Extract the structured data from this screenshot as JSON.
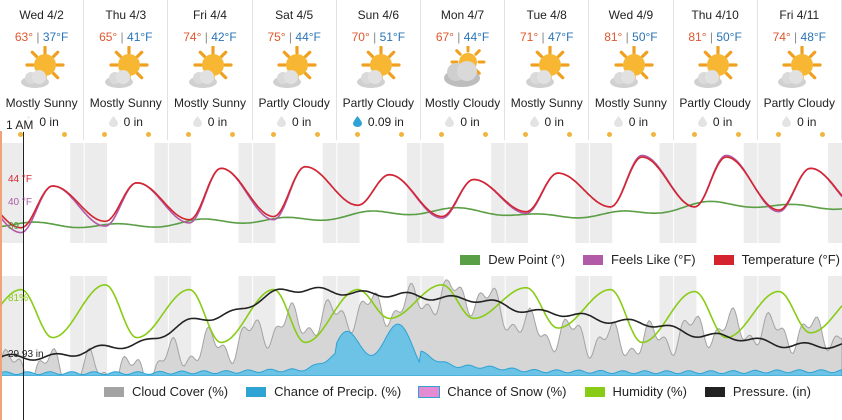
{
  "days": [
    {
      "name": "Wed 4/2",
      "hi": "63°",
      "lo": "37°F",
      "icon": "sun-cloud-icon",
      "condition": "Mostly Sunny",
      "precip": "0 in",
      "precip_type": "none"
    },
    {
      "name": "Thu 4/3",
      "hi": "65°",
      "lo": "41°F",
      "icon": "sun-cloud-icon",
      "condition": "Mostly Sunny",
      "precip": "0 in",
      "precip_type": "none"
    },
    {
      "name": "Fri 4/4",
      "hi": "74°",
      "lo": "42°F",
      "icon": "sun-cloud-icon",
      "condition": "Mostly Sunny",
      "precip": "0 in",
      "precip_type": "none"
    },
    {
      "name": "Sat 4/5",
      "hi": "75°",
      "lo": "44°F",
      "icon": "sun-cloud-icon",
      "condition": "Partly Cloudy",
      "precip": "0 in",
      "precip_type": "none"
    },
    {
      "name": "Sun 4/6",
      "hi": "70°",
      "lo": "51°F",
      "icon": "sun-cloud-icon",
      "condition": "Partly Cloudy",
      "precip": "0.09 in",
      "precip_type": "rain"
    },
    {
      "name": "Mon 4/7",
      "hi": "67°",
      "lo": "44°F",
      "icon": "cloud-sun-icon",
      "condition": "Mostly Cloudy",
      "precip": "0 in",
      "precip_type": "none"
    },
    {
      "name": "Tue 4/8",
      "hi": "71°",
      "lo": "47°F",
      "icon": "sun-cloud-icon",
      "condition": "Mostly Sunny",
      "precip": "0 in",
      "precip_type": "none"
    },
    {
      "name": "Wed 4/9",
      "hi": "81°",
      "lo": "50°F",
      "icon": "sun-cloud-icon",
      "condition": "Mostly Sunny",
      "precip": "0 in",
      "precip_type": "none"
    },
    {
      "name": "Thu 4/10",
      "hi": "81°",
      "lo": "50°F",
      "icon": "sun-cloud-icon",
      "condition": "Partly Cloudy",
      "precip": "0 in",
      "precip_type": "none"
    },
    {
      "name": "Fri 4/11",
      "hi": "74°",
      "lo": "48°F",
      "icon": "sun-cloud-icon",
      "condition": "Partly Cloudy",
      "precip": "0 in",
      "precip_type": "none"
    }
  ],
  "cursor": {
    "time": "1 AM",
    "temperature": "44 °F",
    "feels_like": "40 °F",
    "dew_point": "39",
    "humidity": "81%",
    "pressure": "29.93 in"
  },
  "legend_temp": [
    {
      "label": "Dew Point (°)",
      "color": "#5a9e45"
    },
    {
      "label": "Feels Like (°F)",
      "color": "#b15aa8"
    },
    {
      "label": "Temperature (°F)",
      "color": "#d4252f"
    }
  ],
  "legend_humid": [
    {
      "label": "Cloud Cover (%)",
      "color": "#a3a3a3"
    },
    {
      "label": "Chance of Precip. (%)",
      "color": "#2ea3d4"
    },
    {
      "label": "Chance of Snow (%)",
      "color": "#e48bd4"
    },
    {
      "label": "Humidity (%)",
      "color": "#88cc16"
    },
    {
      "label": "Pressure. (in)",
      "color": "#222222"
    }
  ],
  "colors": {
    "hi_temp": "#e0562c",
    "lo_temp": "#2a74b7",
    "night_band": "#ececec",
    "grid": "#dddddd"
  },
  "chart_data": [
    {
      "type": "line",
      "title": "",
      "xlabel": "",
      "ylabel": "",
      "x": [
        "Wed 4/2",
        "Thu 4/3",
        "Fri 4/4",
        "Sat 4/5",
        "Sun 4/6",
        "Mon 4/7",
        "Tue 4/8",
        "Wed 4/9",
        "Thu 4/10",
        "Fri 4/11"
      ],
      "series": [
        {
          "name": "Temperature (°F)",
          "values": [
            {
              "hi": 63,
              "lo": 37
            },
            {
              "hi": 65,
              "lo": 41
            },
            {
              "hi": 74,
              "lo": 42
            },
            {
              "hi": 75,
              "lo": 44
            },
            {
              "hi": 70,
              "lo": 51
            },
            {
              "hi": 67,
              "lo": 44
            },
            {
              "hi": 71,
              "lo": 47
            },
            {
              "hi": 81,
              "lo": 50
            },
            {
              "hi": 81,
              "lo": 50
            },
            {
              "hi": 74,
              "lo": 48
            }
          ]
        },
        {
          "name": "Feels Like (°F)",
          "values": [
            {
              "hi": 63,
              "lo": 34
            },
            {
              "hi": 65,
              "lo": 38
            },
            {
              "hi": 74,
              "lo": 40
            },
            {
              "hi": 75,
              "lo": 42
            },
            {
              "hi": 70,
              "lo": 51
            },
            {
              "hi": 67,
              "lo": 43
            },
            {
              "hi": 71,
              "lo": 46
            },
            {
              "hi": 82,
              "lo": 50
            },
            {
              "hi": 82,
              "lo": 50
            },
            {
              "hi": 74,
              "lo": 47
            }
          ]
        },
        {
          "name": "Dew Point (°)",
          "values": [
            39,
            38,
            41,
            42,
            46,
            48,
            44,
            46,
            52,
            50
          ]
        }
      ],
      "grid": true,
      "legend": "bottom-right"
    },
    {
      "type": "area",
      "title": "",
      "xlabel": "",
      "ylabel": "",
      "x": [
        "Wed 4/2",
        "Thu 4/3",
        "Fri 4/4",
        "Sat 4/5",
        "Sun 4/6",
        "Mon 4/7",
        "Tue 4/8",
        "Wed 4/9",
        "Thu 4/10",
        "Fri 4/11"
      ],
      "series": [
        {
          "name": "Cloud Cover (%)",
          "values": [
            10,
            5,
            30,
            55,
            70,
            85,
            45,
            35,
            50,
            45
          ]
        },
        {
          "name": "Chance of Precip. (%)",
          "values": [
            3,
            3,
            4,
            6,
            40,
            10,
            5,
            4,
            4,
            5
          ]
        },
        {
          "name": "Chance of Snow (%)",
          "values": [
            0,
            0,
            0,
            0,
            0,
            0,
            0,
            0,
            0,
            0
          ]
        },
        {
          "name": "Humidity (%)",
          "values": [
            {
              "hi": 90,
              "lo": 40
            },
            {
              "hi": 95,
              "lo": 40
            },
            {
              "hi": 90,
              "lo": 35
            },
            {
              "hi": 90,
              "lo": 35
            },
            {
              "hi": 90,
              "lo": 60
            },
            {
              "hi": 95,
              "lo": 60
            },
            {
              "hi": 92,
              "lo": 50
            },
            {
              "hi": 90,
              "lo": 35
            },
            {
              "hi": 88,
              "lo": 40
            },
            {
              "hi": 88,
              "lo": 45
            }
          ]
        },
        {
          "name": "Pressure. (in)",
          "values": [
            29.93,
            29.98,
            30.1,
            30.22,
            30.2,
            30.18,
            30.12,
            30.08,
            30.02,
            29.98
          ]
        }
      ],
      "grid": true,
      "legend": "bottom"
    }
  ]
}
